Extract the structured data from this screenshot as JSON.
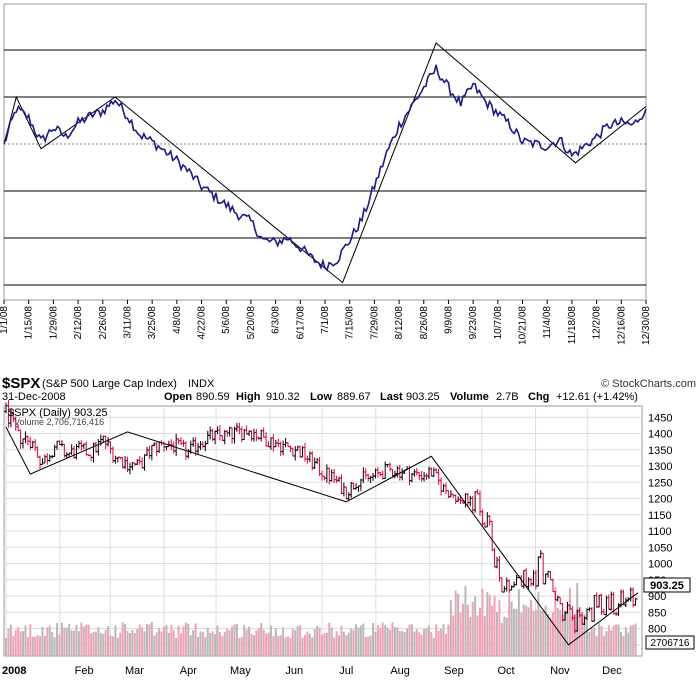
{
  "header": {
    "symbol": "$SPX",
    "name": "(S&P 500 Large Cap Index)",
    "exchange": "INDX",
    "watermark": "© StockCharts.com",
    "date": "31-Dec-2008",
    "open_label": "Open",
    "open": "890.59",
    "high_label": "High",
    "high": "910.32",
    "low_label": "Low",
    "low": "889.67",
    "last_label": "Last",
    "last": "903.25",
    "volume_label": "Volume",
    "volume": "2.7B",
    "chg_label": "Chg",
    "chg": "+12.61 (+1.42%)"
  },
  "price_legend": "$SPX (Daily) 903.25",
  "volume_legend": "Volume 2,706,716,416",
  "last_price_badge": "903.25",
  "volume_badge": "2706716",
  "colors": {
    "oscillator_line": "#1a1a8c",
    "up_bar": "#000000",
    "down_bar": "#e0003a",
    "volume_up": "#b8b8b8",
    "volume_down": "#f4a0b4",
    "trend_lines": "#000000"
  },
  "chart_data": [
    {
      "type": "line",
      "panel": "oscillator",
      "grid": true,
      "x_tick_labels": [
        "1/1/08",
        "1/15/08",
        "1/29/08",
        "2/12/08",
        "2/26/08",
        "3/11/08",
        "3/25/08",
        "4/8/08",
        "4/22/08",
        "5/6/08",
        "5/20/08",
        "6/3/08",
        "6/17/08",
        "7/1/08",
        "7/15/08",
        "7/29/08",
        "8/12/08",
        "8/26/08",
        "9/9/08",
        "9/23/08",
        "10/7/08",
        "10/21/08",
        "11/4/08",
        "11/18/08",
        "12/2/08",
        "12/16/08",
        "12/30/08"
      ],
      "ylim": [
        -3,
        2
      ],
      "y_gridlines": [
        -3,
        -2,
        -1,
        0,
        1,
        2
      ],
      "series": [
        {
          "points": [
            [
              "1/1/08",
              0.0
            ],
            [
              "1/8/08",
              0.75
            ],
            [
              "1/15/08",
              0.55
            ],
            [
              "1/22/08",
              0.05
            ],
            [
              "1/29/08",
              0.35
            ],
            [
              "2/5/08",
              0.15
            ],
            [
              "2/12/08",
              0.45
            ],
            [
              "2/19/08",
              0.6
            ],
            [
              "2/26/08",
              0.7
            ],
            [
              "3/4/08",
              0.95
            ],
            [
              "3/11/08",
              0.6
            ],
            [
              "3/18/08",
              0.2
            ],
            [
              "3/25/08",
              0.05
            ],
            [
              "4/1/08",
              -0.15
            ],
            [
              "4/8/08",
              -0.35
            ],
            [
              "4/15/08",
              -0.6
            ],
            [
              "4/22/08",
              -0.9
            ],
            [
              "4/29/08",
              -1.1
            ],
            [
              "5/6/08",
              -1.3
            ],
            [
              "5/13/08",
              -1.5
            ],
            [
              "5/20/08",
              -1.65
            ],
            [
              "5/27/08",
              -2.05
            ],
            [
              "6/3/08",
              -2.1
            ],
            [
              "6/10/08",
              -2.0
            ],
            [
              "6/17/08",
              -2.2
            ],
            [
              "6/24/08",
              -2.45
            ],
            [
              "7/1/08",
              -2.6
            ],
            [
              "7/8/08",
              -2.45
            ],
            [
              "7/15/08",
              -2.05
            ],
            [
              "7/22/08",
              -1.6
            ],
            [
              "7/29/08",
              -0.9
            ],
            [
              "8/5/08",
              -0.2
            ],
            [
              "8/12/08",
              0.4
            ],
            [
              "8/19/08",
              0.8
            ],
            [
              "8/26/08",
              1.2
            ],
            [
              "9/2/08",
              1.6
            ],
            [
              "9/9/08",
              1.2
            ],
            [
              "9/16/08",
              0.85
            ],
            [
              "9/23/08",
              1.25
            ],
            [
              "9/30/08",
              0.9
            ],
            [
              "10/7/08",
              0.65
            ],
            [
              "10/14/08",
              0.4
            ],
            [
              "10/21/08",
              0.05
            ],
            [
              "10/28/08",
              0.0
            ],
            [
              "11/4/08",
              -0.05
            ],
            [
              "11/11/08",
              0.1
            ],
            [
              "11/18/08",
              -0.25
            ],
            [
              "11/25/08",
              -0.05
            ],
            [
              "12/2/08",
              0.15
            ],
            [
              "12/9/08",
              0.4
            ],
            [
              "12/16/08",
              0.45
            ],
            [
              "12/23/08",
              0.4
            ],
            [
              "12/30/08",
              0.75
            ]
          ]
        }
      ],
      "trend_lines": [
        [
          [
            "1/1/08",
            0.0
          ],
          [
            "1/8/08",
            1.0
          ],
          [
            "1/22/08",
            -0.1
          ],
          [
            "3/4/08",
            1.0
          ],
          [
            "7/11/08",
            -2.95
          ],
          [
            "9/2/08",
            2.15
          ],
          [
            "11/20/08",
            -0.4
          ],
          [
            "12/30/08",
            0.8
          ]
        ]
      ]
    },
    {
      "type": "ohlc",
      "panel": "price",
      "title": "$SPX (S&P 500 Large Cap Index)",
      "x_tick_labels": [
        "2008",
        "Feb",
        "Mar",
        "Apr",
        "May",
        "Jun",
        "Jul",
        "Aug",
        "Sep",
        "Oct",
        "Nov",
        "Dec"
      ],
      "y_tick_labels": [
        750,
        800,
        850,
        900,
        950,
        1000,
        1050,
        1100,
        1150,
        1200,
        1250,
        1300,
        1350,
        1400,
        1450
      ],
      "ylim": [
        740,
        1460
      ],
      "grid": true,
      "legend": "top-left",
      "close_series": [
        [
          "1/1/08",
          1468
        ],
        [
          "1/8/08",
          1390
        ],
        [
          "1/15/08",
          1380
        ],
        [
          "1/22/08",
          1310
        ],
        [
          "1/29/08",
          1362
        ],
        [
          "2/5/08",
          1336
        ],
        [
          "2/12/08",
          1348
        ],
        [
          "2/19/08",
          1342
        ],
        [
          "2/26/08",
          1380
        ],
        [
          "3/4/08",
          1330
        ],
        [
          "3/11/08",
          1308
        ],
        [
          "3/18/08",
          1300
        ],
        [
          "3/25/08",
          1352
        ],
        [
          "4/1/08",
          1370
        ],
        [
          "4/8/08",
          1360
        ],
        [
          "4/15/08",
          1340
        ],
        [
          "4/22/08",
          1378
        ],
        [
          "4/29/08",
          1390
        ],
        [
          "5/6/08",
          1392
        ],
        [
          "5/13/08",
          1402
        ],
        [
          "5/20/08",
          1412
        ],
        [
          "5/27/08",
          1390
        ],
        [
          "6/3/08",
          1375
        ],
        [
          "6/10/08",
          1360
        ],
        [
          "6/17/08",
          1350
        ],
        [
          "6/24/08",
          1318
        ],
        [
          "7/1/08",
          1282
        ],
        [
          "7/8/08",
          1260
        ],
        [
          "7/15/08",
          1220
        ],
        [
          "7/22/08",
          1260
        ],
        [
          "7/29/08",
          1262
        ],
        [
          "8/5/08",
          1282
        ],
        [
          "8/12/08",
          1290
        ],
        [
          "8/19/08",
          1278
        ],
        [
          "8/26/08",
          1272
        ],
        [
          "9/2/08",
          1280
        ],
        [
          "9/9/08",
          1230
        ],
        [
          "9/16/08",
          1210
        ],
        [
          "9/23/08",
          1190
        ],
        [
          "9/30/08",
          1166
        ],
        [
          "10/7/08",
          1060
        ],
        [
          "10/14/08",
          930
        ],
        [
          "10/21/08",
          960
        ],
        [
          "10/28/08",
          930
        ],
        [
          "11/4/08",
          1004
        ],
        [
          "11/11/08",
          900
        ],
        [
          "11/18/08",
          850
        ],
        [
          "11/25/08",
          815
        ],
        [
          "12/2/08",
          850
        ],
        [
          "12/9/08",
          880
        ],
        [
          "12/16/08",
          890
        ],
        [
          "12/23/08",
          870
        ],
        [
          "12/30/08",
          903.25
        ]
      ],
      "trend_lines": [
        [
          [
            "1/1/08",
            1420
          ],
          [
            "1/15/08",
            1275
          ],
          [
            "3/11/08",
            1405
          ],
          [
            "7/15/08",
            1190
          ],
          [
            "9/2/08",
            1330
          ],
          [
            "11/20/08",
            750
          ],
          [
            "12/30/08",
            910
          ]
        ]
      ]
    },
    {
      "type": "bar",
      "panel": "volume",
      "title": "Volume",
      "note": "relative daily volume shown as overlay bars, rising sharply in October and November"
    }
  ]
}
